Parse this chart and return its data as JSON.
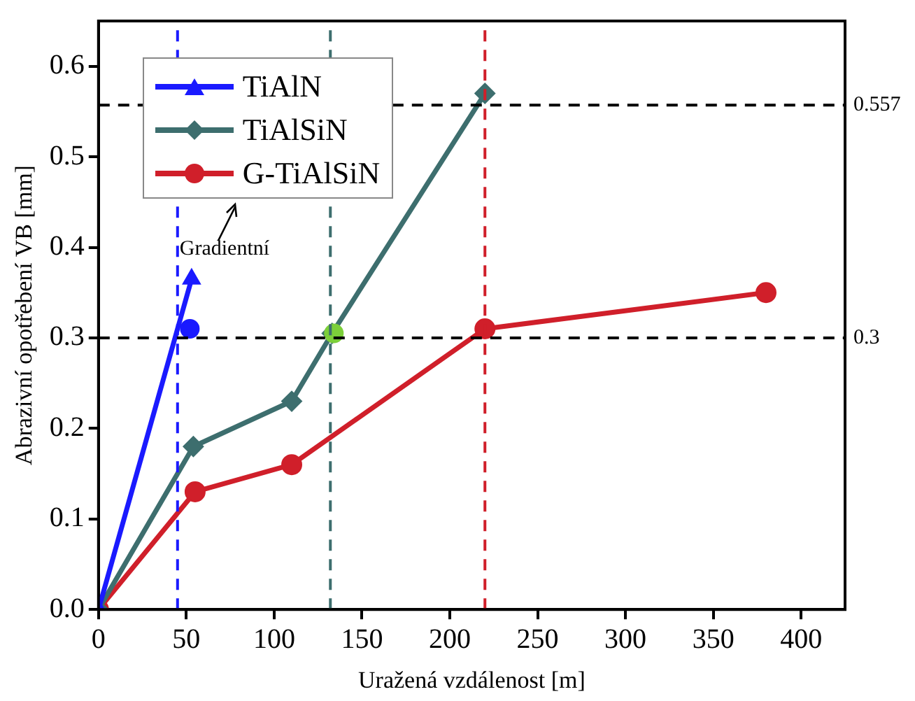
{
  "chart_data": {
    "type": "line",
    "xlabel": "Uražená vzdálenost [m]",
    "ylabel": "Abrazivní opotřebení VB [mm]",
    "xlim": [
      0,
      425
    ],
    "xticks": [
      0,
      50,
      100,
      150,
      200,
      250,
      300,
      350,
      400
    ],
    "ylim": [
      0,
      0.65
    ],
    "yticks": [
      {
        "value": 0,
        "label": "0.0"
      },
      0.1,
      0.2,
      0.3,
      0.4,
      0.5,
      0.6
    ],
    "grid": false,
    "legend": "top left",
    "series": [
      {
        "name": "TiAlN",
        "color": "#1a1aff",
        "marker": "triangle",
        "x": [
          0,
          53
        ],
        "values": [
          0,
          0.365
        ]
      },
      {
        "name": "TiAlSiN",
        "color": "#3d6e6e",
        "marker": "diamond",
        "x": [
          0,
          54,
          110,
          133,
          220
        ],
        "values": [
          0,
          0.18,
          0.23,
          0.305,
          0.57
        ]
      },
      {
        "name": "G-TiAlSiN",
        "color": "#d01f2a",
        "marker": "circle",
        "x": [
          0,
          55,
          110,
          220,
          380
        ],
        "values": [
          0,
          0.13,
          0.16,
          0.31,
          0.35
        ]
      },
      {
        "type": "scatter",
        "color": "#1a1aff",
        "marker": "circle",
        "x": [
          52
        ],
        "values": [
          0.31
        ]
      },
      {
        "type": "scatter",
        "color": "#7ccf3a",
        "marker": "circle",
        "x": [
          134
        ],
        "values": [
          0.305
        ]
      }
    ],
    "ref_lines": [
      {
        "axis": "y",
        "value": 0.557,
        "label": "0.557",
        "color": "#000000",
        "line_style": "dashed"
      },
      {
        "axis": "y",
        "value": 0.3,
        "label": "0.3",
        "color": "#000000",
        "line_style": "dashed"
      },
      {
        "axis": "x",
        "value": 45,
        "color": "#1a1aff",
        "line_style": "dashed"
      },
      {
        "axis": "x",
        "value": 132,
        "color": "#3d6e6e",
        "line_style": "dashed"
      },
      {
        "axis": "x",
        "value": 220,
        "color": "#d01f2a",
        "line_style": "dashed"
      }
    ],
    "annotations": [
      "Gradientní"
    ]
  }
}
